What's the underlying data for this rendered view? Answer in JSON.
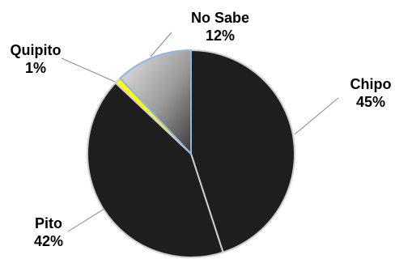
{
  "chart_data": {
    "type": "pie",
    "slices": [
      {
        "label": "Chipo",
        "value": 45,
        "value_label": "45%",
        "color": "#1e1e1e",
        "edge": "#cfcfcf"
      },
      {
        "label": "Pito",
        "value": 42,
        "value_label": "42%",
        "color": "#1e1e1e",
        "edge": "#cfcfcf"
      },
      {
        "label": "Quipito",
        "value": 1,
        "value_label": "1%",
        "color": "#ffff00",
        "edge": "#cfcfcf"
      },
      {
        "label": "No Sabe",
        "value": 12,
        "value_label": "12%",
        "color": "#9a9a9a",
        "edge": "#8fb8e0"
      }
    ],
    "start_angle_deg": 0,
    "direction": "clockwise",
    "legend": "none",
    "data_labels": "outside-with-leader-lines"
  }
}
